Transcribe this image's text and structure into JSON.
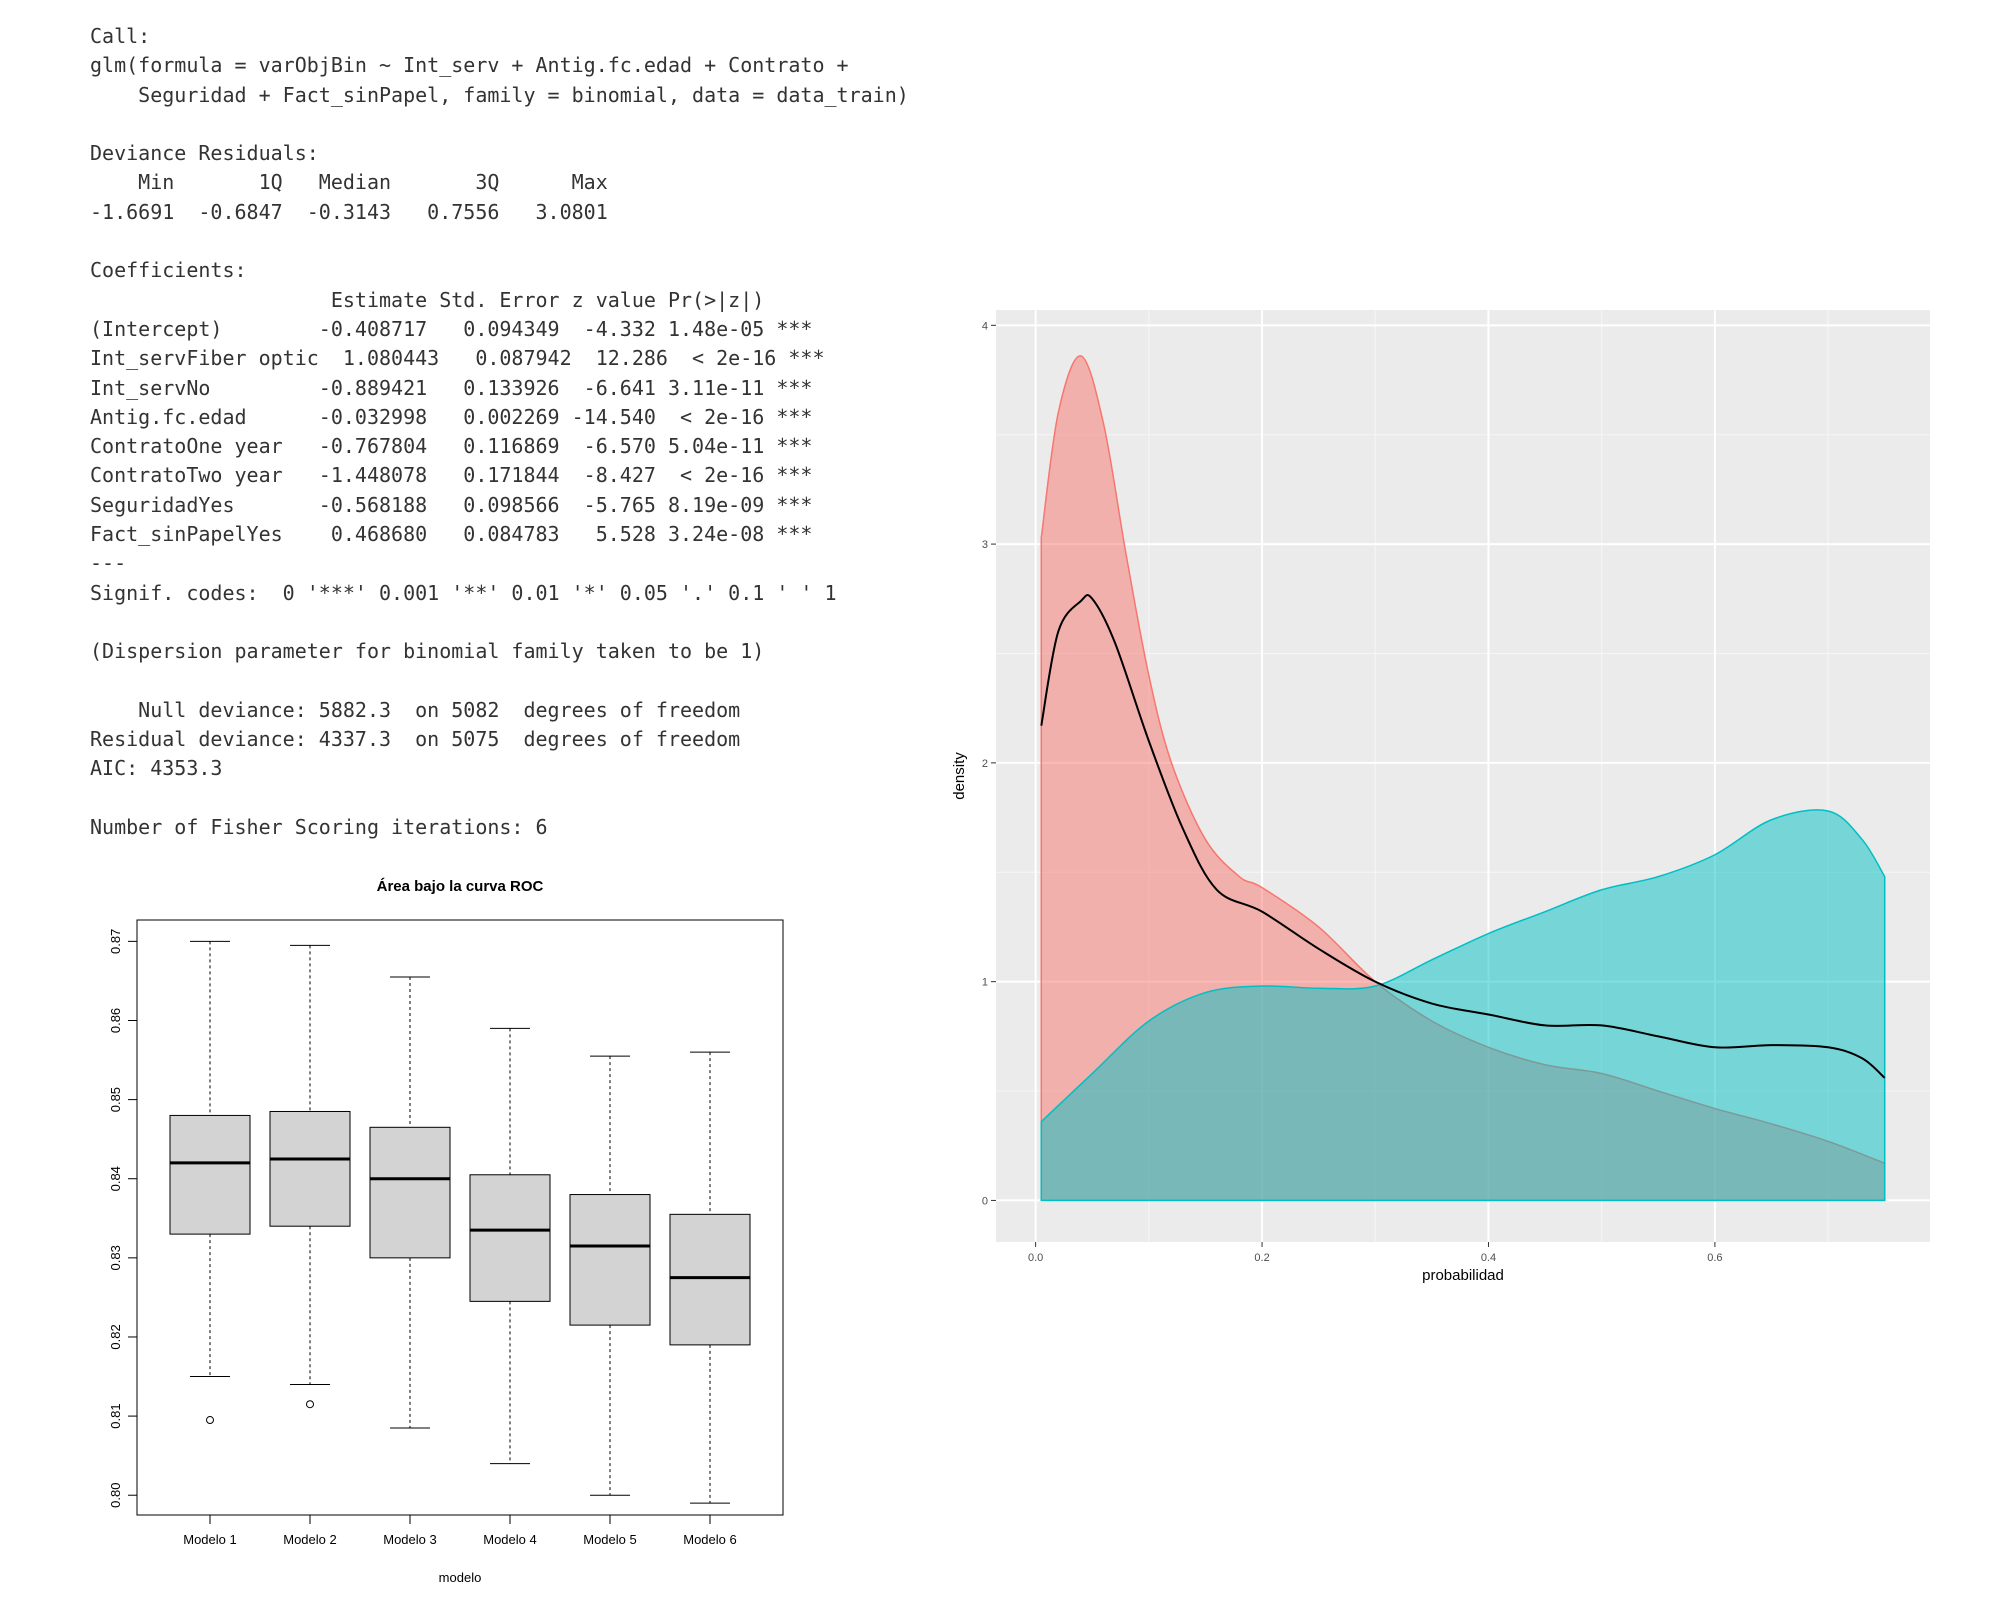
{
  "console": {
    "lines": [
      "Call:",
      "glm(formula = varObjBin ~ Int_serv + Antig.fc.edad + Contrato +",
      "    Seguridad + Fact_sinPapel, family = binomial, data = data_train)",
      "",
      "Deviance Residuals:",
      "    Min       1Q   Median       3Q      Max",
      "-1.6691  -0.6847  -0.3143   0.7556   3.0801",
      "",
      "Coefficients:",
      "                    Estimate Std. Error z value Pr(>|z|)",
      "(Intercept)        -0.408717   0.094349  -4.332 1.48e-05 ***",
      "Int_servFiber optic  1.080443   0.087942  12.286  < 2e-16 ***",
      "Int_servNo         -0.889421   0.133926  -6.641 3.11e-11 ***",
      "Antig.fc.edad      -0.032998   0.002269 -14.540  < 2e-16 ***",
      "ContratoOne year   -0.767804   0.116869  -6.570 5.04e-11 ***",
      "ContratoTwo year   -1.448078   0.171844  -8.427  < 2e-16 ***",
      "SeguridadYes       -0.568188   0.098566  -5.765 8.19e-09 ***",
      "Fact_sinPapelYes    0.468680   0.084783   5.528 3.24e-08 ***",
      "---",
      "Signif. codes:  0 '***' 0.001 '**' 0.01 '*' 0.05 '.' 0.1 ' ' 1",
      "",
      "(Dispersion parameter for binomial family taken to be 1)",
      "",
      "    Null deviance: 5882.3  on 5082  degrees of freedom",
      "Residual deviance: 4337.3  on 5075  degrees of freedom",
      "AIC: 4353.3",
      "",
      "Number of Fisher Scoring iterations: 6"
    ]
  },
  "chart_data": [
    {
      "type": "boxplot",
      "title": "Área bajo la curva ROC",
      "xlabel": "modelo",
      "ylabel": "",
      "ylim": [
        0.8,
        0.87
      ],
      "yticks": [
        "0.80",
        "0.81",
        "0.82",
        "0.83",
        "0.84",
        "0.85",
        "0.86",
        "0.87"
      ],
      "categories": [
        "Modelo 1",
        "Modelo 2",
        "Modelo 3",
        "Modelo 4",
        "Modelo 5",
        "Modelo 6"
      ],
      "boxes": [
        {
          "whisker_low": 0.815,
          "q1": 0.833,
          "median": 0.842,
          "q3": 0.848,
          "whisker_high": 0.87,
          "outliers": [
            0.8095
          ]
        },
        {
          "whisker_low": 0.814,
          "q1": 0.834,
          "median": 0.8425,
          "q3": 0.8485,
          "whisker_high": 0.8695,
          "outliers": [
            0.8115
          ]
        },
        {
          "whisker_low": 0.8085,
          "q1": 0.83,
          "median": 0.84,
          "q3": 0.8465,
          "whisker_high": 0.8655,
          "outliers": []
        },
        {
          "whisker_low": 0.804,
          "q1": 0.8245,
          "median": 0.8335,
          "q3": 0.8405,
          "whisker_high": 0.859,
          "outliers": []
        },
        {
          "whisker_low": 0.8,
          "q1": 0.8215,
          "median": 0.8315,
          "q3": 0.838,
          "whisker_high": 0.8555,
          "outliers": []
        },
        {
          "whisker_low": 0.799,
          "q1": 0.819,
          "median": 0.8275,
          "q3": 0.8355,
          "whisker_high": 0.856,
          "outliers": []
        }
      ]
    },
    {
      "type": "area",
      "title": "",
      "xlabel": "probabilidad",
      "ylabel": "density",
      "xlim": [
        -0.035,
        0.79
      ],
      "ylim": [
        -0.19,
        4.07
      ],
      "xticks": [
        0.0,
        0.2,
        0.4,
        0.6
      ],
      "xtick_labels": [
        "0.0",
        "0.2",
        "0.4",
        "0.6"
      ],
      "yticks": [
        0,
        1,
        2,
        3,
        4
      ],
      "ytick_labels": [
        "0",
        "1",
        "2",
        "3",
        "4"
      ],
      "grid": true,
      "series": [
        {
          "color": "#F8766D",
          "x": [
            0.005,
            0.02,
            0.04,
            0.06,
            0.08,
            0.1,
            0.12,
            0.15,
            0.18,
            0.2,
            0.25,
            0.3,
            0.35,
            0.4,
            0.45,
            0.5,
            0.55,
            0.6,
            0.65,
            0.7,
            0.75
          ],
          "y": [
            3.03,
            3.6,
            3.86,
            3.55,
            2.95,
            2.4,
            2.0,
            1.65,
            1.48,
            1.43,
            1.25,
            1.0,
            0.82,
            0.7,
            0.62,
            0.58,
            0.5,
            0.42,
            0.35,
            0.27,
            0.17
          ]
        },
        {
          "color": "#00BFC4",
          "x": [
            0.005,
            0.05,
            0.1,
            0.15,
            0.2,
            0.25,
            0.3,
            0.35,
            0.4,
            0.45,
            0.5,
            0.55,
            0.6,
            0.65,
            0.7,
            0.73,
            0.75
          ],
          "y": [
            0.36,
            0.58,
            0.82,
            0.95,
            0.98,
            0.97,
            0.98,
            1.1,
            1.22,
            1.32,
            1.42,
            1.48,
            1.58,
            1.74,
            1.78,
            1.65,
            1.48
          ]
        },
        {
          "color": "#000000",
          "x": [
            0.005,
            0.02,
            0.04,
            0.05,
            0.07,
            0.1,
            0.13,
            0.16,
            0.2,
            0.25,
            0.3,
            0.35,
            0.4,
            0.45,
            0.5,
            0.55,
            0.6,
            0.65,
            0.7,
            0.73,
            0.75
          ],
          "y": [
            2.17,
            2.6,
            2.74,
            2.75,
            2.55,
            2.1,
            1.7,
            1.42,
            1.32,
            1.15,
            1.0,
            0.9,
            0.85,
            0.8,
            0.8,
            0.75,
            0.7,
            0.71,
            0.7,
            0.65,
            0.56
          ]
        }
      ]
    }
  ]
}
